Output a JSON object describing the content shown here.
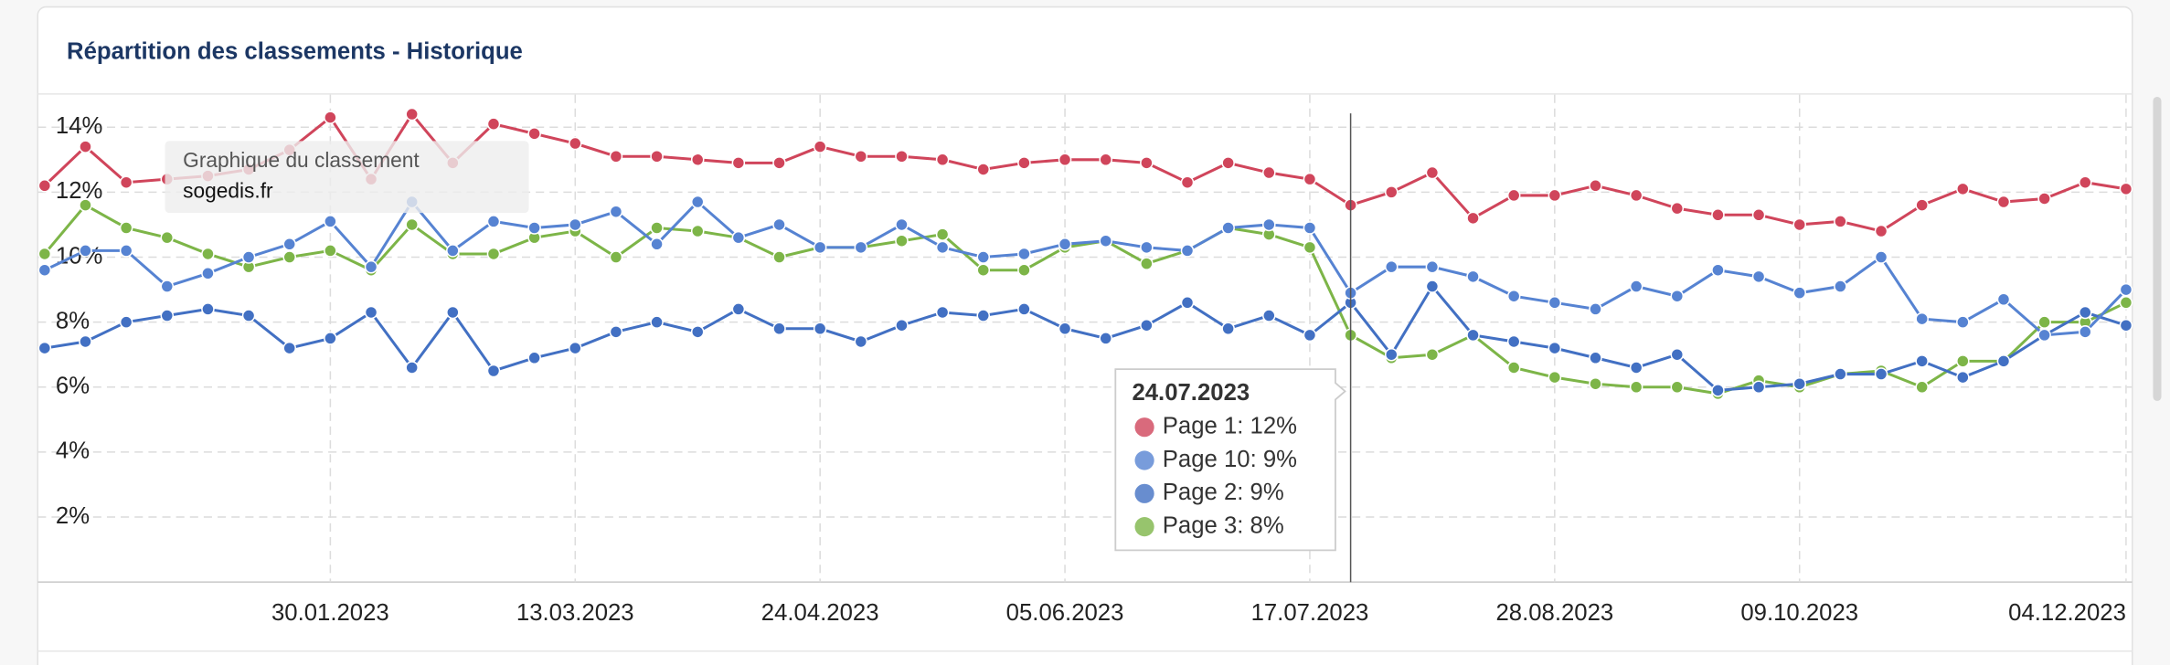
{
  "chart_data": {
    "type": "line",
    "title": "Répartition des classements - Historique",
    "watermark": {
      "title": "Graphique du classement",
      "subtitle": "sogedis.fr"
    },
    "x": [
      "12.12.2022",
      "19.12.2022",
      "26.12.2022",
      "02.01.2023",
      "09.01.2023",
      "16.01.2023",
      "23.01.2023",
      "30.01.2023",
      "06.02.2023",
      "13.02.2023",
      "20.02.2023",
      "27.02.2023",
      "06.03.2023",
      "13.03.2023",
      "20.03.2023",
      "27.03.2023",
      "03.04.2023",
      "10.04.2023",
      "17.04.2023",
      "24.04.2023",
      "01.05.2023",
      "08.05.2023",
      "15.05.2023",
      "22.05.2023",
      "29.05.2023",
      "05.06.2023",
      "12.06.2023",
      "19.06.2023",
      "26.06.2023",
      "03.07.2023",
      "10.07.2023",
      "17.07.2023",
      "24.07.2023",
      "31.07.2023",
      "07.08.2023",
      "14.08.2023",
      "21.08.2023",
      "28.08.2023",
      "04.09.2023",
      "11.09.2023",
      "18.09.2023",
      "25.09.2023",
      "02.10.2023",
      "09.10.2023",
      "16.10.2023",
      "23.10.2023",
      "30.10.2023",
      "06.11.2023",
      "13.11.2023",
      "20.11.2023",
      "27.11.2023",
      "04.12.2023"
    ],
    "xticks": [
      "30.01.2023",
      "13.03.2023",
      "24.04.2023",
      "05.06.2023",
      "17.07.2023",
      "28.08.2023",
      "09.10.2023",
      "04.12.2023"
    ],
    "ylim": [
      0,
      15
    ],
    "yticks": [
      {
        "value": 2,
        "label": "2%"
      },
      {
        "value": 4,
        "label": "4%"
      },
      {
        "value": 6,
        "label": "6%"
      },
      {
        "value": 8,
        "label": "8%"
      },
      {
        "value": 10,
        "label": "10%"
      },
      {
        "value": 12,
        "label": "12%"
      },
      {
        "value": 14,
        "label": "14%"
      }
    ],
    "grid": true,
    "series": [
      {
        "color": "#d0455b",
        "values": [
          12.2,
          13.4,
          12.3,
          12.4,
          12.5,
          12.7,
          13.3,
          14.3,
          12.4,
          14.4,
          12.9,
          14.1,
          13.8,
          13.5,
          13.1,
          13.1,
          13.0,
          12.9,
          12.9,
          13.4,
          13.1,
          13.1,
          13.0,
          12.7,
          12.9,
          13.0,
          13.0,
          12.9,
          12.3,
          12.9,
          12.6,
          12.4,
          11.6,
          12.0,
          12.6,
          11.2,
          11.9,
          11.9,
          12.2,
          11.9,
          11.5,
          11.3,
          11.3,
          11.0,
          11.1,
          10.8,
          11.6,
          12.1,
          11.7,
          11.8,
          12.3,
          12.1
        ]
      },
      {
        "color": "#5683d2",
        "values": [
          9.6,
          10.2,
          10.2,
          9.1,
          9.5,
          10.0,
          10.4,
          11.1,
          9.7,
          11.7,
          10.2,
          11.1,
          10.9,
          11.0,
          11.4,
          10.4,
          11.7,
          10.6,
          11.0,
          10.3,
          10.3,
          11.0,
          10.3,
          10.0,
          10.1,
          10.4,
          10.5,
          10.3,
          10.2,
          10.9,
          11.0,
          10.9,
          8.9,
          9.7,
          9.7,
          9.4,
          8.8,
          8.6,
          8.4,
          9.1,
          8.8,
          9.6,
          9.4,
          8.9,
          9.1,
          10.0,
          8.1,
          8.0,
          8.7,
          7.6,
          7.7,
          9.0
        ]
      },
      {
        "color": "#4270c3",
        "values": [
          7.2,
          7.4,
          8.0,
          8.2,
          8.4,
          8.2,
          7.2,
          7.5,
          8.3,
          6.6,
          8.3,
          6.5,
          6.9,
          7.2,
          7.7,
          8.0,
          7.7,
          8.4,
          7.8,
          7.8,
          7.4,
          7.9,
          8.3,
          8.2,
          8.4,
          7.8,
          7.5,
          7.9,
          8.6,
          7.8,
          8.2,
          7.6,
          8.6,
          7.0,
          9.1,
          7.6,
          7.4,
          7.2,
          6.9,
          6.6,
          7.0,
          5.9,
          6.0,
          6.1,
          6.4,
          6.4,
          6.8,
          6.3,
          6.8,
          7.6,
          8.3,
          7.9
        ]
      },
      {
        "color": "#7db548",
        "values": [
          10.1,
          11.6,
          10.9,
          10.6,
          10.1,
          9.7,
          10.0,
          10.2,
          9.6,
          11.0,
          10.1,
          10.1,
          10.6,
          10.8,
          10.0,
          10.9,
          10.8,
          10.6,
          10.0,
          10.3,
          10.3,
          10.5,
          10.7,
          9.6,
          9.6,
          10.3,
          10.5,
          9.8,
          10.2,
          10.9,
          10.7,
          10.3,
          7.6,
          6.9,
          7.0,
          7.6,
          6.6,
          6.3,
          6.1,
          6.0,
          6.0,
          5.8,
          6.2,
          6.0,
          6.4,
          6.5,
          6.0,
          6.8,
          6.8,
          8.0,
          8.0,
          8.6
        ]
      }
    ],
    "tooltip": {
      "title": "24.07.2023",
      "items": [
        "Page 1: 12%",
        "Page 10: 9%",
        "Page 2: 9%",
        "Page 3: 8%"
      ]
    }
  }
}
